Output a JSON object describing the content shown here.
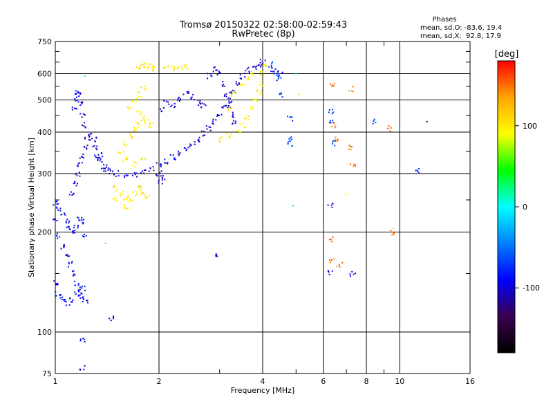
{
  "chart_data": {
    "type": "scatter",
    "title": "Tromsø 20150322 02:58:00-02:59:43",
    "subtitle": "RwPretec (8p)",
    "xlabel": "Frequency [MHz]",
    "ylabel": "Stationary phase Virtual Height [km]",
    "x_scale": "log",
    "y_scale": "log",
    "xlim": [
      1,
      16
    ],
    "ylim": [
      75,
      750
    ],
    "x_ticks": [
      1,
      2,
      4,
      6,
      8,
      10,
      16
    ],
    "x_minor_ticks": [
      3,
      5,
      7,
      9
    ],
    "y_ticks": [
      75,
      100,
      200,
      300,
      400,
      500,
      600,
      750
    ],
    "y_minor_ticks": [
      150,
      250,
      350,
      450,
      550,
      650,
      700
    ],
    "grid": true,
    "stats": {
      "header": "Phases",
      "line1": "mean, sd,O: -83.6, 19.4",
      "line2": "mean, sd,X:  92.8, 17.9"
    },
    "colorbar": {
      "label": "[deg]",
      "range": [
        -180,
        180
      ],
      "ticks": [
        100,
        0,
        -100
      ],
      "colors": [
        "#000000",
        "#3a0050",
        "#0000ff",
        "#0080ff",
        "#00ffff",
        "#00ff00",
        "#ffff00",
        "#ffa500",
        "#ff0000"
      ]
    },
    "traces": [
      {
        "name": "",
        "phase": -90,
        "points": [
          [
            1.0,
            245
          ],
          [
            1.02,
            235
          ],
          [
            1.05,
            225
          ],
          [
            1.08,
            215
          ],
          [
            1.1,
            205
          ],
          [
            1.12,
            200
          ],
          [
            1.15,
            210
          ],
          [
            1.18,
            220
          ],
          [
            1.2,
            215
          ],
          [
            1.22,
            195
          ],
          [
            1.0,
            215
          ],
          [
            1.02,
            195
          ],
          [
            1.05,
            180
          ],
          [
            1.08,
            170
          ],
          [
            1.1,
            160
          ],
          [
            1.12,
            150
          ],
          [
            1.15,
            140
          ],
          [
            1.18,
            132
          ],
          [
            1.2,
            128
          ],
          [
            1.22,
            124
          ],
          [
            1.0,
            140
          ],
          [
            1.02,
            130
          ],
          [
            1.05,
            125
          ],
          [
            1.08,
            122
          ],
          [
            1.12,
            125
          ],
          [
            1.16,
            130
          ],
          [
            1.2,
            135
          ]
        ]
      },
      {
        "name": "",
        "phase": -100,
        "points": [
          [
            1.12,
            260
          ],
          [
            1.14,
            280
          ],
          [
            1.16,
            300
          ],
          [
            1.18,
            320
          ],
          [
            1.2,
            340
          ],
          [
            1.22,
            360
          ],
          [
            1.24,
            380
          ],
          [
            1.26,
            395
          ],
          [
            1.3,
            380
          ],
          [
            1.35,
            340
          ],
          [
            1.4,
            315
          ],
          [
            1.45,
            305
          ],
          [
            1.5,
            300
          ],
          [
            1.6,
            298
          ],
          [
            1.7,
            298
          ],
          [
            1.8,
            302
          ],
          [
            1.9,
            310
          ],
          [
            2.0,
            318
          ],
          [
            2.1,
            325
          ],
          [
            2.2,
            335
          ],
          [
            2.3,
            345
          ],
          [
            2.4,
            355
          ],
          [
            2.5,
            368
          ],
          [
            2.6,
            380
          ],
          [
            2.7,
            395
          ],
          [
            2.8,
            410
          ],
          [
            2.9,
            430
          ],
          [
            3.0,
            450
          ],
          [
            3.1,
            475
          ],
          [
            3.2,
            500
          ],
          [
            3.3,
            530
          ],
          [
            3.4,
            560
          ],
          [
            3.5,
            590
          ],
          [
            3.6,
            615
          ],
          [
            3.8,
            630
          ],
          [
            3.9,
            640
          ],
          [
            4.0,
            650
          ]
        ]
      },
      {
        "name": "",
        "phase": -95,
        "points": [
          [
            1.14,
            470
          ],
          [
            1.15,
            500
          ],
          [
            1.16,
            530
          ],
          [
            1.17,
            520
          ],
          [
            1.18,
            490
          ],
          [
            1.2,
            450
          ],
          [
            1.22,
            420
          ],
          [
            1.3,
            360
          ],
          [
            1.32,
            340
          ],
          [
            1.35,
            330
          ],
          [
            1.38,
            310
          ]
        ]
      },
      {
        "name": "",
        "phase": -100,
        "points": [
          [
            2.05,
            470
          ],
          [
            2.1,
            490
          ],
          [
            2.2,
            480
          ],
          [
            2.3,
            500
          ],
          [
            2.4,
            520
          ],
          [
            2.5,
            510
          ],
          [
            2.6,
            490
          ],
          [
            2.7,
            480
          ],
          [
            2.0,
            300
          ],
          [
            2.05,
            290
          ],
          [
            2.02,
            285
          ],
          [
            2.8,
            590
          ],
          [
            2.9,
            620
          ],
          [
            3.0,
            600
          ],
          [
            3.1,
            560
          ],
          [
            3.15,
            520
          ],
          [
            3.2,
            480
          ],
          [
            3.25,
            450
          ],
          [
            3.3,
            430
          ]
        ]
      },
      {
        "name": "",
        "phase": 100,
        "points": [
          [
            1.55,
            350
          ],
          [
            1.6,
            370
          ],
          [
            1.65,
            390
          ],
          [
            1.7,
            410
          ],
          [
            1.75,
            420
          ],
          [
            1.6,
            330
          ],
          [
            1.7,
            320
          ],
          [
            1.8,
            330
          ],
          [
            1.65,
            470
          ],
          [
            1.7,
            500
          ],
          [
            1.75,
            520
          ],
          [
            1.8,
            540
          ],
          [
            1.75,
            460
          ],
          [
            1.8,
            440
          ],
          [
            1.85,
            430
          ],
          [
            1.9,
            420
          ],
          [
            1.5,
            270
          ],
          [
            1.55,
            260
          ],
          [
            1.6,
            255
          ],
          [
            1.65,
            250
          ],
          [
            1.7,
            260
          ],
          [
            1.75,
            270
          ],
          [
            1.8,
            265
          ],
          [
            1.85,
            255
          ],
          [
            1.5,
            250
          ],
          [
            1.6,
            240
          ],
          [
            3.0,
            380
          ],
          [
            3.2,
            390
          ],
          [
            3.4,
            400
          ],
          [
            3.5,
            420
          ],
          [
            3.6,
            440
          ],
          [
            3.7,
            470
          ],
          [
            3.8,
            500
          ],
          [
            3.9,
            530
          ],
          [
            4.0,
            560
          ],
          [
            4.0,
            600
          ],
          [
            4.05,
            640
          ],
          [
            3.6,
            580
          ],
          [
            3.7,
            600
          ],
          [
            3.5,
            550
          ],
          [
            3.3,
            520
          ],
          [
            3.2,
            470
          ],
          [
            2.1,
            635
          ],
          [
            2.2,
            625
          ],
          [
            2.3,
            620
          ],
          [
            2.4,
            630
          ],
          [
            1.75,
            630
          ],
          [
            1.8,
            640
          ],
          [
            1.85,
            635
          ],
          [
            1.9,
            630
          ],
          [
            1.95,
            620
          ]
        ]
      },
      {
        "name": "",
        "phase": 20,
        "points": [
          [
            1.22,
            590
          ],
          [
            1.4,
            185
          ],
          [
            4.9,
            240
          ],
          [
            5.0,
            600
          ]
        ]
      },
      {
        "name": "",
        "phase": -100,
        "points": [
          [
            1.2,
            95
          ],
          [
            1.2,
            78
          ],
          [
            1.45,
            110
          ],
          [
            2.95,
            170
          ],
          [
            6.3,
            240
          ],
          [
            6.3,
            150
          ],
          [
            7.3,
            150
          ],
          [
            4.5,
            610
          ],
          [
            4.3,
            620
          ]
        ]
      },
      {
        "name": "",
        "phase": 150,
        "points": [
          [
            6.35,
            550
          ],
          [
            7.2,
            540
          ],
          [
            6.4,
            420
          ],
          [
            6.5,
            380
          ],
          [
            7.2,
            360
          ],
          [
            6.35,
            190
          ],
          [
            6.35,
            165
          ],
          [
            6.7,
            160
          ],
          [
            9.5,
            200
          ],
          [
            9.3,
            410
          ],
          [
            7.3,
            315
          ]
        ]
      },
      {
        "name": "",
        "phase": -70,
        "points": [
          [
            6.3,
            460
          ],
          [
            6.35,
            430
          ],
          [
            6.4,
            370
          ],
          [
            8.4,
            430
          ],
          [
            11.2,
            305
          ],
          [
            4.8,
            380
          ],
          [
            4.8,
            370
          ],
          [
            4.8,
            440
          ],
          [
            4.5,
            520
          ],
          [
            4.45,
            580
          ],
          [
            4.4,
            600
          ],
          [
            4.2,
            640
          ]
        ]
      },
      {
        "name": "",
        "phase": 90,
        "points": [
          [
            5.1,
            520
          ],
          [
            7.0,
            260
          ],
          [
            9.6,
            205
          ]
        ]
      },
      {
        "name": "",
        "phase": -170,
        "points": [
          [
            12.0,
            430
          ]
        ]
      }
    ]
  }
}
